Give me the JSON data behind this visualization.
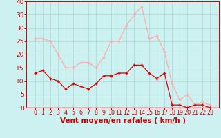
{
  "hours": [
    0,
    1,
    2,
    3,
    4,
    5,
    6,
    7,
    8,
    9,
    10,
    11,
    12,
    13,
    14,
    15,
    16,
    17,
    18,
    19,
    20,
    21,
    22,
    23
  ],
  "wind_avg": [
    13,
    14,
    11,
    10,
    7,
    9,
    8,
    7,
    9,
    12,
    12,
    13,
    13,
    16,
    16,
    13,
    11,
    13,
    1,
    1,
    0,
    1,
    1,
    0
  ],
  "wind_gust": [
    26,
    26,
    25,
    20,
    15,
    15,
    17,
    17,
    15,
    19,
    25,
    25,
    31,
    35,
    38,
    26,
    27,
    21,
    9,
    3,
    5,
    1,
    2,
    1
  ],
  "avg_color": "#dd0000",
  "gust_color": "#ffaaaa",
  "bg_color": "#cdf0f0",
  "grid_color": "#aad8d8",
  "axis_color": "#cc0000",
  "xlabel": "Vent moyen/en rafales ( km/h )",
  "ylim": [
    0,
    40
  ],
  "yticks": [
    0,
    5,
    10,
    15,
    20,
    25,
    30,
    35,
    40
  ],
  "tick_fontsize": 6.5,
  "label_fontsize": 7.5
}
